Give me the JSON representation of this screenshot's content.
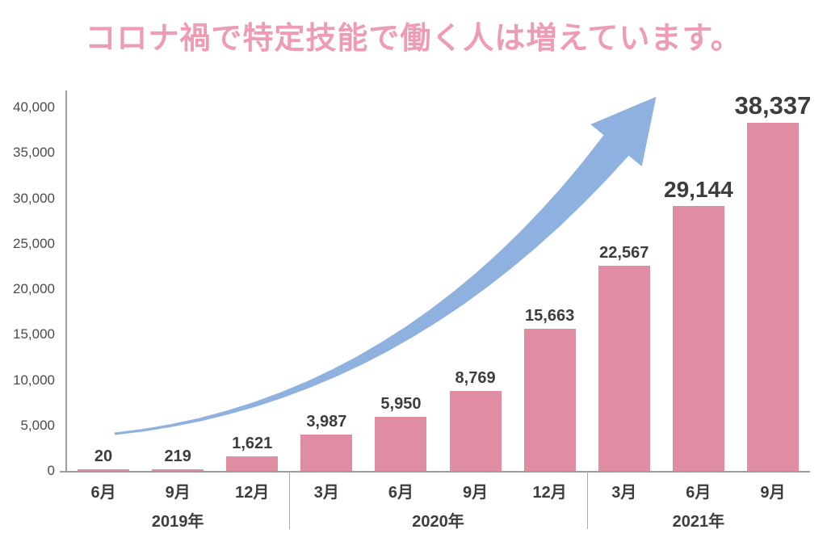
{
  "header": {
    "title": "コロナ禍で特定技能で働く人は増えています。"
  },
  "colors": {
    "title_pink": "#ee9cb4",
    "bar_pink": "#e08ca2",
    "arrow_blue": "#8fb1e0",
    "axis_gray": "#9e9e9e",
    "separator_gray": "#ababab",
    "value_text": "#3d3d3d",
    "tick_text": "#4b4b4b"
  },
  "chart_data": {
    "type": "bar",
    "title": "コロナ禍で特定技能で働く人は増えています。",
    "xlabel": "",
    "ylabel": "",
    "ylim": [
      0,
      40000
    ],
    "grid": false,
    "legend": false,
    "y_ticks": [
      {
        "value": 0,
        "label": "0"
      },
      {
        "value": 5000,
        "label": "5,000"
      },
      {
        "value": 10000,
        "label": "10,000"
      },
      {
        "value": 15000,
        "label": "15,000"
      },
      {
        "value": 20000,
        "label": "20,000"
      },
      {
        "value": 25000,
        "label": "25,000"
      },
      {
        "value": 30000,
        "label": "30,000"
      },
      {
        "value": 35000,
        "label": "35,000"
      },
      {
        "value": 40000,
        "label": "40,000"
      }
    ],
    "groups": [
      {
        "year": "2019年",
        "points": [
          {
            "month": "6月",
            "value": 20,
            "label": "20",
            "emphasis": "normal"
          },
          {
            "month": "9月",
            "value": 219,
            "label": "219",
            "emphasis": "normal"
          },
          {
            "month": "12月",
            "value": 1621,
            "label": "1,621",
            "emphasis": "normal"
          }
        ]
      },
      {
        "year": "2020年",
        "points": [
          {
            "month": "3月",
            "value": 3987,
            "label": "3,987",
            "emphasis": "normal"
          },
          {
            "month": "6月",
            "value": 5950,
            "label": "5,950",
            "emphasis": "normal"
          },
          {
            "month": "9月",
            "value": 8769,
            "label": "8,769",
            "emphasis": "normal"
          },
          {
            "month": "12月",
            "value": 15663,
            "label": "15,663",
            "emphasis": "normal"
          }
        ]
      },
      {
        "year": "2021年",
        "points": [
          {
            "month": "3月",
            "value": 22567,
            "label": "22,567",
            "emphasis": "normal"
          },
          {
            "month": "6月",
            "value": 29144,
            "label": "29,144",
            "emphasis": "large"
          },
          {
            "month": "9月",
            "value": 38337,
            "label": "38,337",
            "emphasis": "xlarge"
          }
        ]
      }
    ],
    "annotations": [
      {
        "name": "growth-arrow",
        "description": "curved swoosh arrow rising from lower-left to upper-right"
      }
    ]
  }
}
